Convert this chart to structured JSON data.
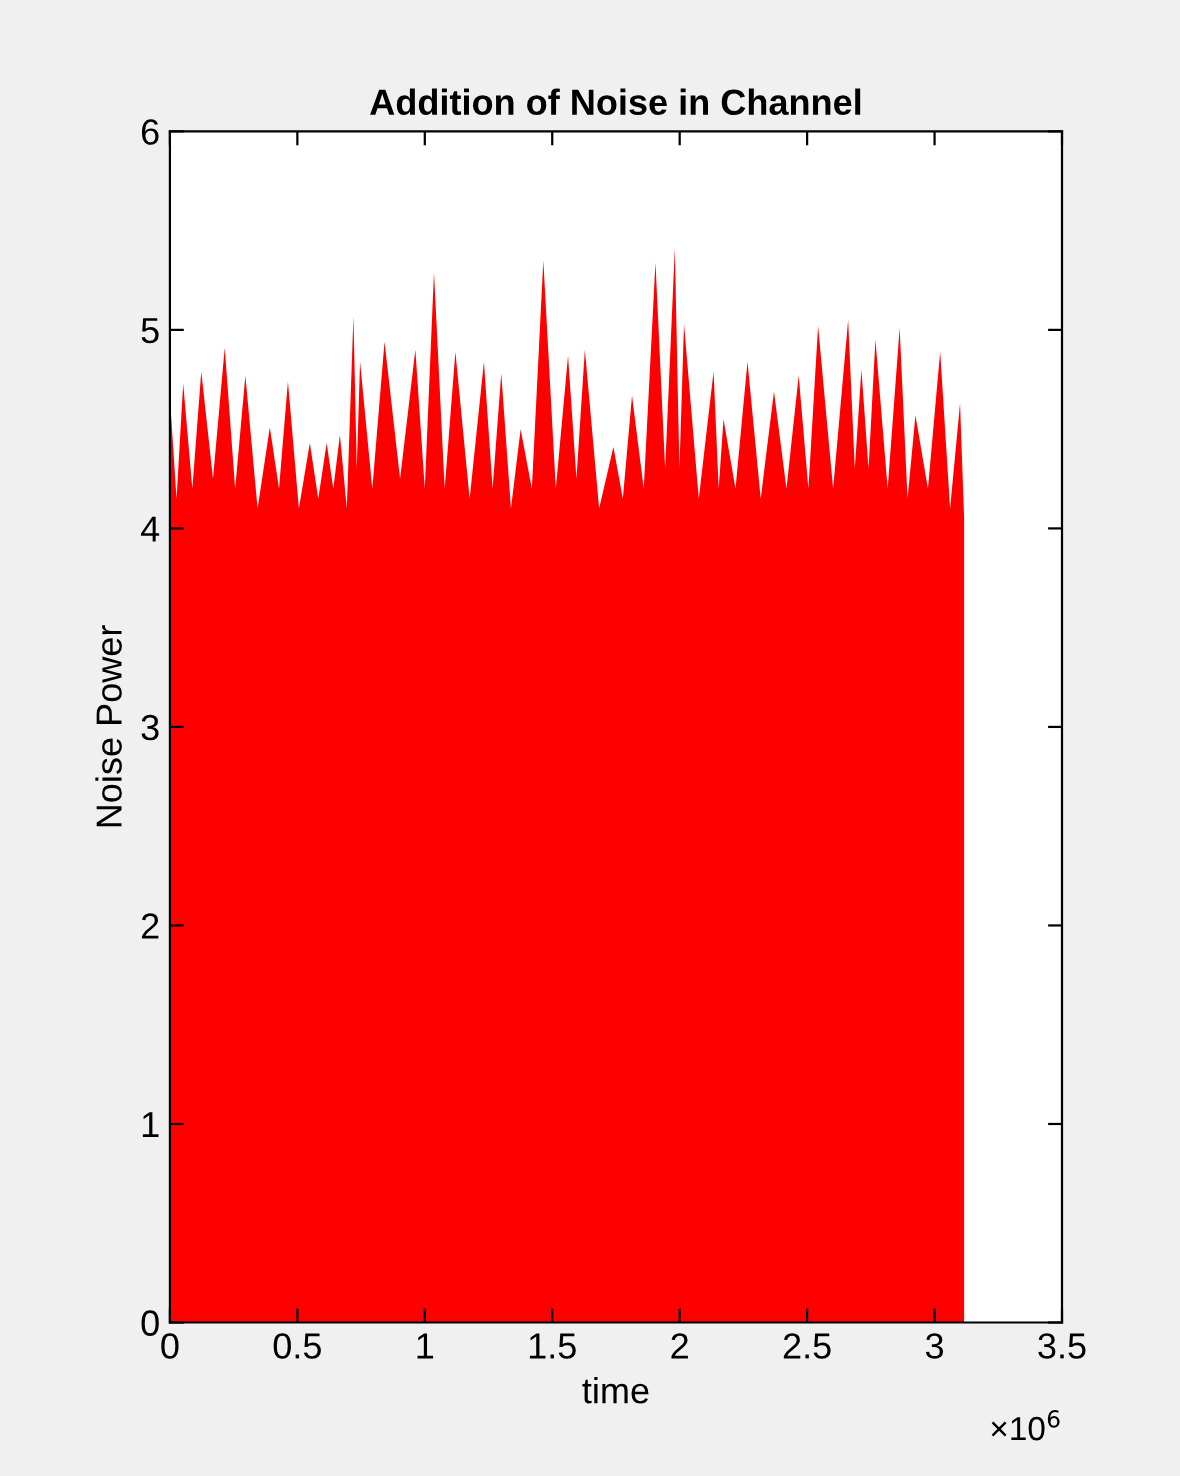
{
  "chart_data": {
    "type": "area",
    "title": "Addition of Noise in Channel",
    "xlabel": "time",
    "ylabel": "Noise Power",
    "annotations": [
      "×10$^{6}$"
    ],
    "x": [
      0,
      0.026,
      0.052,
      0.088,
      0.123,
      0.169,
      0.215,
      0.256,
      0.296,
      0.344,
      0.392,
      0.428,
      0.463,
      0.506,
      0.549,
      0.582,
      0.615,
      0.641,
      0.667,
      0.694,
      0.72,
      0.733,
      0.746,
      0.794,
      0.842,
      0.903,
      0.963,
      1.0,
      1.036,
      1.078,
      1.12,
      1.176,
      1.232,
      1.266,
      1.3,
      1.338,
      1.376,
      1.42,
      1.465,
      1.514,
      1.562,
      1.595,
      1.628,
      1.684,
      1.74,
      1.777,
      1.813,
      1.859,
      1.905,
      1.943,
      1.981,
      1.999,
      2.017,
      2.075,
      2.133,
      2.153,
      2.172,
      2.219,
      2.266,
      2.318,
      2.37,
      2.419,
      2.467,
      2.505,
      2.543,
      2.602,
      2.661,
      2.687,
      2.713,
      2.741,
      2.768,
      2.816,
      2.863,
      2.894,
      2.925,
      2.974,
      3.022,
      3.061,
      3.1,
      3.116
    ],
    "values": [
      4.66,
      4.15,
      4.73,
      4.2,
      4.79,
      4.25,
      4.91,
      4.2,
      4.77,
      4.1,
      4.51,
      4.2,
      4.74,
      4.1,
      4.43,
      4.15,
      4.43,
      4.2,
      4.47,
      4.1,
      5.07,
      4.3,
      4.84,
      4.2,
      4.94,
      4.25,
      4.9,
      4.2,
      5.29,
      4.2,
      4.89,
      4.15,
      4.84,
      4.2,
      4.78,
      4.1,
      4.5,
      4.2,
      5.35,
      4.2,
      4.87,
      4.25,
      4.9,
      4.1,
      4.41,
      4.15,
      4.67,
      4.2,
      5.34,
      4.3,
      5.41,
      4.3,
      5.03,
      4.15,
      4.79,
      4.2,
      4.55,
      4.2,
      4.84,
      4.15,
      4.69,
      4.2,
      4.77,
      4.2,
      5.02,
      4.2,
      5.05,
      4.3,
      4.8,
      4.3,
      4.95,
      4.2,
      5.01,
      4.15,
      4.57,
      4.2,
      4.89,
      4.1,
      4.63,
      4.05
    ],
    "color": "#ff0000",
    "xlim": [
      0,
      3.5
    ],
    "ylim": [
      0,
      6
    ],
    "xticks": [
      0,
      0.5,
      1,
      1.5,
      2,
      2.5,
      3,
      3.5
    ],
    "yticks": [
      0,
      1,
      2,
      3,
      4,
      5,
      6
    ],
    "grid": false,
    "legend": false
  }
}
